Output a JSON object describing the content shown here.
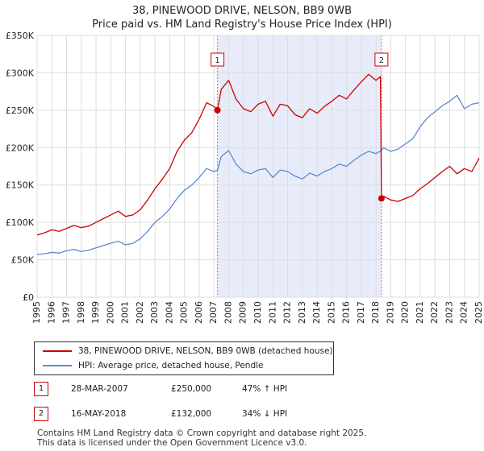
{
  "header": {
    "title": "38, PINEWOOD DRIVE, NELSON, BB9 0WB",
    "subtitle": "Price paid vs. HM Land Registry's House Price Index (HPI)"
  },
  "legend": {
    "property_label": "38, PINEWOOD DRIVE, NELSON, BB9 0WB (detached house)",
    "hpi_label": "HPI: Average price, detached house, Pendle"
  },
  "transactions": [
    {
      "id": "1",
      "date": "28-MAR-2007",
      "price": "£250,000",
      "hpi_change": "47% ↑ HPI"
    },
    {
      "id": "2",
      "date": "16-MAY-2018",
      "price": "£132,000",
      "hpi_change": "34% ↓ HPI"
    }
  ],
  "footer": {
    "line1": "Contains HM Land Registry data © Crown copyright and database right 2025.",
    "line2": "This data is licensed under the Open Government Licence v3.0."
  },
  "colors": {
    "property_line": "#cc0000",
    "hpi_line": "#5b8ccc",
    "shade": "#e8ecfa",
    "grid": "#dddddd"
  },
  "chart_data": {
    "type": "line",
    "title": "38, PINEWOOD DRIVE, NELSON, BB9 0WB",
    "subtitle": "Price paid vs. HM Land Registry's House Price Index (HPI)",
    "xlabel": "",
    "ylabel": "",
    "xlim": [
      1995,
      2025
    ],
    "ylim": [
      0,
      350000
    ],
    "y_ticks": [
      0,
      50000,
      100000,
      150000,
      200000,
      250000,
      300000,
      350000
    ],
    "y_tick_labels": [
      "£0",
      "£50K",
      "£100K",
      "£150K",
      "£200K",
      "£250K",
      "£300K",
      "£350K"
    ],
    "x_ticks": [
      1995,
      1996,
      1997,
      1998,
      1999,
      2000,
      2001,
      2002,
      2003,
      2004,
      2005,
      2006,
      2007,
      2008,
      2009,
      2010,
      2011,
      2012,
      2013,
      2014,
      2015,
      2016,
      2017,
      2018,
      2019,
      2020,
      2021,
      2022,
      2023,
      2024,
      2025
    ],
    "grid": true,
    "shaded_range": [
      2007.24,
      2018.37
    ],
    "markers": [
      {
        "label": "1",
        "x": 2007.24,
        "y": 250000
      },
      {
        "label": "2",
        "x": 2018.37,
        "y": 132000
      }
    ],
    "series": [
      {
        "name": "38, PINEWOOD DRIVE, NELSON, BB9 0WB (detached house)",
        "x": [
          1995.0,
          1995.5,
          1996.0,
          1996.5,
          1997.0,
          1997.5,
          1998.0,
          1998.5,
          1999.0,
          1999.5,
          2000.0,
          2000.5,
          2001.0,
          2001.5,
          2002.0,
          2002.5,
          2003.0,
          2003.5,
          2004.0,
          2004.5,
          2005.0,
          2005.5,
          2006.0,
          2006.5,
          2007.0,
          2007.24,
          2007.5,
          2008.0,
          2008.5,
          2009.0,
          2009.5,
          2010.0,
          2010.5,
          2011.0,
          2011.5,
          2012.0,
          2012.5,
          2013.0,
          2013.5,
          2014.0,
          2014.5,
          2015.0,
          2015.5,
          2016.0,
          2016.5,
          2017.0,
          2017.5,
          2018.0,
          2018.3,
          2018.37,
          2018.5,
          2019.0,
          2019.5,
          2020.0,
          2020.5,
          2021.0,
          2021.5,
          2022.0,
          2022.5,
          2023.0,
          2023.5,
          2024.0,
          2024.5,
          2025.0
        ],
        "values": [
          83000,
          86000,
          90000,
          88000,
          92000,
          96000,
          93000,
          95000,
          100000,
          105000,
          110000,
          115000,
          108000,
          110000,
          117000,
          130000,
          145000,
          158000,
          172000,
          195000,
          210000,
          220000,
          238000,
          260000,
          255000,
          250000,
          278000,
          290000,
          265000,
          252000,
          248000,
          258000,
          262000,
          242000,
          258000,
          256000,
          244000,
          240000,
          252000,
          246000,
          255000,
          262000,
          270000,
          265000,
          277000,
          288000,
          298000,
          290000,
          295000,
          132000,
          135000,
          130000,
          128000,
          132000,
          136000,
          145000,
          152000,
          160000,
          168000,
          175000,
          165000,
          172000,
          168000,
          186000
        ]
      },
      {
        "name": "HPI: Average price, detached house, Pendle",
        "x": [
          1995.0,
          1995.5,
          1996.0,
          1996.5,
          1997.0,
          1997.5,
          1998.0,
          1998.5,
          1999.0,
          1999.5,
          2000.0,
          2000.5,
          2001.0,
          2001.5,
          2002.0,
          2002.5,
          2003.0,
          2003.5,
          2004.0,
          2004.5,
          2005.0,
          2005.5,
          2006.0,
          2006.5,
          2007.0,
          2007.24,
          2007.5,
          2008.0,
          2008.5,
          2009.0,
          2009.5,
          2010.0,
          2010.5,
          2011.0,
          2011.5,
          2012.0,
          2012.5,
          2013.0,
          2013.5,
          2014.0,
          2014.5,
          2015.0,
          2015.5,
          2016.0,
          2016.5,
          2017.0,
          2017.5,
          2018.0,
          2018.37,
          2018.5,
          2019.0,
          2019.5,
          2020.0,
          2020.5,
          2021.0,
          2021.5,
          2022.0,
          2022.5,
          2023.0,
          2023.5,
          2024.0,
          2024.5,
          2025.0
        ],
        "values": [
          57000,
          58000,
          60000,
          59000,
          62000,
          64000,
          61000,
          63000,
          66000,
          69000,
          72000,
          75000,
          70000,
          72000,
          78000,
          88000,
          100000,
          108000,
          118000,
          132000,
          143000,
          150000,
          160000,
          172000,
          168000,
          170000,
          188000,
          196000,
          178000,
          168000,
          165000,
          170000,
          172000,
          160000,
          170000,
          168000,
          162000,
          158000,
          166000,
          162000,
          168000,
          172000,
          178000,
          175000,
          183000,
          190000,
          195000,
          192000,
          196000,
          200000,
          195000,
          198000,
          205000,
          212000,
          228000,
          240000,
          248000,
          256000,
          262000,
          270000,
          252000,
          258000,
          260000
        ]
      }
    ]
  }
}
